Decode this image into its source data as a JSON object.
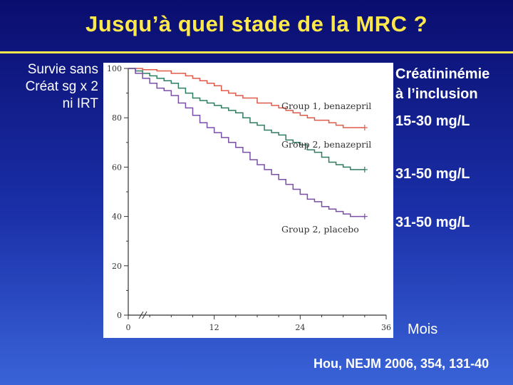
{
  "slide": {
    "title": "Jusqu’à quel stade de la MRC ?",
    "left_label_lines": [
      "Survie sans",
      "Créat sg x 2",
      "ni IRT"
    ],
    "right_header_lines": [
      "Créatininémie",
      "à l’inclusion"
    ],
    "right_values": [
      "15-30 mg/L",
      "31-50 mg/L",
      "31-50 mg/L"
    ],
    "x_unit": "Mois",
    "reference": "Hou, NEJM 2006, 354, 131-40"
  },
  "colors": {
    "background_top": "#0a0d6e",
    "background_bottom": "#3a63d8",
    "title": "#ffe94a",
    "group1_benazepril": "#e05a4a",
    "group2_benazepril": "#2e7d5e",
    "group2_placebo": "#7a4fa8"
  },
  "chart_data": {
    "type": "line",
    "title": "",
    "xlabel": "",
    "ylabel": "",
    "xlim": [
      0,
      36
    ],
    "ylim": [
      0,
      100
    ],
    "x_ticks": [
      0,
      12,
      24,
      36
    ],
    "y_ticks": [
      0,
      20,
      40,
      60,
      80,
      100
    ],
    "step": true,
    "grid": false,
    "series": [
      {
        "name": "Group 1, benazepril",
        "color": "#e05a4a",
        "x": [
          0,
          2,
          4,
          6,
          8,
          9,
          10,
          11,
          12,
          13,
          14,
          15,
          16,
          18,
          20,
          21,
          22,
          23,
          24,
          25,
          26,
          28,
          29,
          30,
          31,
          32,
          33
        ],
        "y": [
          100,
          99.5,
          99,
          98,
          97,
          96,
          95,
          94,
          93,
          91,
          90,
          89,
          88,
          86,
          85,
          84,
          83,
          82,
          81,
          80,
          79,
          78,
          77,
          76,
          76,
          76,
          76
        ]
      },
      {
        "name": "Group 2, benazepril",
        "color": "#2e7d5e",
        "x": [
          0,
          1,
          2,
          3,
          4,
          5,
          6,
          7,
          8,
          9,
          10,
          11,
          12,
          13,
          14,
          15,
          16,
          17,
          18,
          19,
          20,
          21,
          22,
          23,
          24,
          25,
          26,
          27,
          28,
          29,
          30,
          31,
          33
        ],
        "y": [
          100,
          99,
          98,
          97,
          96,
          95,
          94,
          92,
          90,
          88,
          87,
          86,
          85,
          84,
          83,
          82,
          80,
          78,
          77,
          75,
          74,
          73,
          71,
          70,
          69,
          67,
          66,
          64,
          62,
          61,
          60,
          59,
          59
        ]
      },
      {
        "name": "Group 2, placebo",
        "color": "#7a4fa8",
        "x": [
          0,
          1,
          2,
          3,
          4,
          5,
          6,
          7,
          8,
          9,
          10,
          11,
          12,
          13,
          14,
          15,
          16,
          17,
          18,
          19,
          20,
          21,
          22,
          23,
          24,
          25,
          26,
          27,
          28,
          29,
          30,
          31,
          33
        ],
        "y": [
          100,
          98,
          96,
          94,
          92,
          91,
          89,
          86,
          84,
          81,
          78,
          76,
          74,
          72,
          70,
          68,
          66,
          63,
          61,
          59,
          57,
          55,
          53,
          51,
          49,
          47,
          46,
          44,
          43,
          42,
          41,
          40,
          40
        ]
      }
    ]
  }
}
